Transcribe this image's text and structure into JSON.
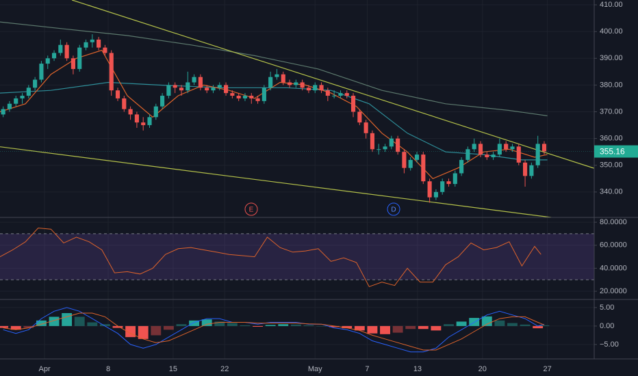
{
  "chart_data": [
    {
      "type": "candlestick",
      "up_color": "#26a69a",
      "down_color": "#ef5350",
      "xlim": [
        0,
        94
      ],
      "xticks": [
        {
          "value": 7.0,
          "label": "Apr"
        },
        {
          "value": 17.0,
          "label": "8"
        },
        {
          "value": 27.2,
          "label": "15"
        },
        {
          "value": 35.3,
          "label": "22"
        },
        {
          "value": 49.5,
          "label": "May"
        },
        {
          "value": 57.7,
          "label": "7"
        },
        {
          "value": 65.6,
          "label": "13"
        },
        {
          "value": 75.8,
          "label": "20"
        },
        {
          "value": 86.0,
          "label": "27"
        }
      ],
      "ylim": [
        330.5,
        411.8
      ],
      "yticks": [
        {
          "value": 340,
          "label": "340.00"
        },
        {
          "value": 350,
          "label": "350.00"
        },
        {
          "value": 360,
          "label": "360.00"
        },
        {
          "value": 370,
          "label": "370.00"
        },
        {
          "value": 380,
          "label": "380.00"
        },
        {
          "value": 390,
          "label": "390.00"
        },
        {
          "value": 400,
          "label": "400.00"
        },
        {
          "value": 410,
          "label": "410.00"
        }
      ],
      "grid": true,
      "ohlc": [
        [
          369,
          372,
          368,
          371
        ],
        [
          371,
          374,
          370,
          373
        ],
        [
          373,
          376,
          372,
          375
        ],
        [
          375,
          377,
          373,
          376
        ],
        [
          376,
          380,
          375,
          379
        ],
        [
          379,
          383,
          378,
          382
        ],
        [
          382,
          389,
          381,
          388
        ],
        [
          388,
          391,
          386,
          390
        ],
        [
          390,
          393,
          389,
          392
        ],
        [
          392,
          397,
          391,
          395
        ],
        [
          395,
          396,
          389,
          390
        ],
        [
          390,
          391,
          384,
          386
        ],
        [
          386,
          395,
          385,
          394
        ],
        [
          394,
          397,
          393,
          396
        ],
        [
          396,
          399,
          394,
          397
        ],
        [
          397,
          398,
          393,
          394
        ],
        [
          394,
          395,
          391,
          392
        ],
        [
          392,
          393,
          376,
          378
        ],
        [
          378,
          379,
          374,
          375
        ],
        [
          375,
          376,
          370,
          371
        ],
        [
          371,
          372,
          367,
          369
        ],
        [
          369,
          370,
          364,
          366
        ],
        [
          366,
          368,
          363,
          365
        ],
        [
          365,
          369,
          364,
          368
        ],
        [
          368,
          373,
          367,
          372
        ],
        [
          372,
          377,
          371,
          376
        ],
        [
          376,
          381,
          375,
          380
        ],
        [
          380,
          381,
          377,
          379
        ],
        [
          379,
          380,
          376,
          378
        ],
        [
          378,
          385,
          377,
          381
        ],
        [
          381,
          384,
          380,
          383
        ],
        [
          383,
          384,
          378,
          379
        ],
        [
          379,
          380,
          377,
          378
        ],
        [
          378,
          380,
          377,
          379
        ],
        [
          379,
          381,
          378,
          380
        ],
        [
          380,
          381,
          376,
          377
        ],
        [
          377,
          378,
          375,
          376
        ],
        [
          376,
          377,
          374,
          375
        ],
        [
          375,
          377,
          374,
          376
        ],
        [
          376,
          377,
          373,
          375
        ],
        [
          375,
          376,
          373,
          374
        ],
        [
          374,
          380,
          373,
          379
        ],
        [
          379,
          385,
          378,
          383
        ],
        [
          383,
          386,
          382,
          384
        ],
        [
          384,
          385,
          380,
          381
        ],
        [
          381,
          382,
          379,
          380
        ],
        [
          380,
          382,
          379,
          381
        ],
        [
          381,
          382,
          378,
          379
        ],
        [
          379,
          380,
          377,
          378
        ],
        [
          378,
          381,
          377,
          380
        ],
        [
          380,
          381,
          377,
          378
        ],
        [
          378,
          379,
          374,
          376
        ],
        [
          376,
          378,
          375,
          376
        ],
        [
          376,
          378,
          375,
          377
        ],
        [
          377,
          378,
          375,
          376
        ],
        [
          376,
          377,
          368,
          370
        ],
        [
          370,
          371,
          365,
          366
        ],
        [
          366,
          367,
          360,
          362
        ],
        [
          362,
          363,
          355,
          356
        ],
        [
          356,
          358,
          354,
          356
        ],
        [
          356,
          358,
          355,
          357
        ],
        [
          357,
          361,
          356,
          360
        ],
        [
          360,
          361,
          354,
          355
        ],
        [
          355,
          356,
          347,
          349
        ],
        [
          349,
          353,
          348,
          352
        ],
        [
          352,
          355,
          351,
          354
        ],
        [
          354,
          355,
          343,
          344
        ],
        [
          344,
          345,
          336,
          338
        ],
        [
          338,
          341,
          337,
          340
        ],
        [
          340,
          345,
          339,
          344
        ],
        [
          344,
          345,
          342,
          343
        ],
        [
          343,
          348,
          342,
          347
        ],
        [
          347,
          353,
          346,
          352
        ],
        [
          352,
          357,
          351,
          356
        ],
        [
          356,
          360,
          355,
          358
        ],
        [
          358,
          359,
          353,
          354
        ],
        [
          354,
          355,
          352,
          353
        ],
        [
          353,
          355,
          352,
          354
        ],
        [
          354,
          360,
          353,
          358
        ],
        [
          358,
          359,
          355,
          356
        ],
        [
          356,
          358,
          355,
          357
        ],
        [
          357,
          358,
          350,
          351
        ],
        [
          351,
          352,
          342,
          346
        ],
        [
          346,
          351,
          345,
          350
        ],
        [
          350,
          361,
          349,
          358
        ],
        [
          358,
          359,
          354,
          355.16
        ]
      ],
      "lines": [
        {
          "color": "#5d7a6e",
          "x": [
            0,
            10,
            20,
            30,
            40,
            50,
            60,
            70,
            80,
            86
          ],
          "values": [
            403.6,
            401,
            398.5,
            395,
            391,
            386,
            378,
            373,
            370.5,
            368.5
          ]
        },
        {
          "color": "#2e8f9a",
          "x": [
            0,
            8,
            17,
            25,
            35,
            45,
            52,
            58,
            64,
            70,
            76,
            82,
            86
          ],
          "values": [
            377,
            378,
            381,
            380,
            379,
            379,
            378,
            373,
            362,
            355,
            354,
            352,
            352
          ]
        },
        {
          "color": "#e0642b",
          "x": [
            0,
            4,
            8,
            12,
            16,
            20,
            24,
            28,
            32,
            36,
            40,
            44,
            48,
            52,
            56,
            60,
            64,
            68,
            72,
            76,
            80,
            84,
            86
          ],
          "values": [
            370,
            373,
            384,
            390,
            393,
            376,
            368,
            376,
            380,
            378,
            375,
            381,
            380,
            377,
            372,
            362,
            355,
            345,
            349,
            355,
            356,
            353,
            354
          ]
        },
        {
          "color": "#b5c24a",
          "x": [
            11.3,
            93.3
          ],
          "values": [
            411.8,
            348.9
          ]
        },
        {
          "color": "#b5c24a",
          "x": [
            0,
            86.6
          ],
          "values": [
            356.9,
            330.5
          ]
        }
      ],
      "events": [
        {
          "label": "E",
          "color": "#ef5350"
        },
        {
          "label": "D",
          "color": "#2962ff"
        }
      ]
    },
    {
      "type": "line",
      "color": "#e0642b",
      "band_color": "#7e57c2",
      "ylim": [
        12.9,
        84.2
      ],
      "yticks": [
        {
          "value": 20,
          "label": "20.0000"
        },
        {
          "value": 40,
          "label": "40.0000"
        },
        {
          "value": 60,
          "label": "60.0000"
        },
        {
          "value": 80,
          "label": "80.0000"
        }
      ],
      "bands": [
        30,
        70
      ],
      "x": [
        0,
        2,
        4,
        6,
        8,
        10,
        12,
        14,
        16,
        18,
        20,
        22,
        24,
        26,
        28,
        30,
        32,
        34,
        36,
        38,
        40,
        42,
        44,
        46,
        48,
        50,
        52,
        54,
        56,
        58,
        60,
        62,
        64,
        66,
        68,
        70,
        72,
        74,
        76,
        78,
        80,
        82,
        84,
        85
      ],
      "values": [
        50,
        56,
        63,
        75,
        74,
        62,
        67,
        63,
        56,
        36,
        37,
        35,
        40,
        52,
        57,
        58,
        56,
        54,
        52,
        51,
        50,
        67,
        58,
        54,
        55,
        57,
        46,
        49,
        45,
        24,
        28,
        25,
        40,
        28,
        28,
        43,
        50,
        62,
        56,
        58,
        63,
        42,
        59,
        52
      ]
    },
    {
      "type": "macd",
      "up_color": "#26a69a",
      "down_color": "#ef5350",
      "macd_color": "#2962ff",
      "signal_color": "#e0642b",
      "ylim": [
        -8.9,
        7.2
      ],
      "yticks": [
        {
          "value": -5,
          "label": "−5.00"
        },
        {
          "value": 0,
          "label": "0.00"
        },
        {
          "value": 5,
          "label": "5.00"
        }
      ],
      "x": [
        0,
        2,
        4,
        6,
        8,
        10,
        12,
        14,
        16,
        18,
        20,
        22,
        24,
        26,
        28,
        30,
        32,
        34,
        36,
        38,
        40,
        42,
        44,
        46,
        48,
        50,
        52,
        54,
        56,
        58,
        60,
        62,
        64,
        66,
        68,
        70,
        72,
        74,
        76,
        78,
        80,
        82,
        84,
        85
      ],
      "histogram": [
        -0.5,
        -1,
        -0.5,
        1.5,
        2.5,
        3.5,
        2.5,
        1.0,
        0.5,
        -0.5,
        -3,
        -3.5,
        -2.5,
        -1.0,
        0.5,
        1.5,
        1.8,
        1.2,
        0.8,
        0.2,
        -0.2,
        0.3,
        0.5,
        0.4,
        0.2,
        0,
        -0.3,
        -0.6,
        -1.2,
        -2,
        -2.2,
        -1.8,
        -0.8,
        -0.8,
        -1.2,
        0.5,
        1.2,
        2.2,
        2.6,
        1.5,
        0.8,
        0.4,
        -0.6,
        0.2
      ],
      "macd": [
        -1,
        -2,
        -1,
        2,
        4,
        5,
        4,
        2,
        0,
        -2,
        -5,
        -6,
        -5,
        -3,
        -1,
        1,
        2,
        2,
        1,
        1,
        0.5,
        1,
        1,
        1,
        0.5,
        0.5,
        -0.5,
        -1,
        -2,
        -4,
        -5,
        -6,
        -7,
        -7,
        -6,
        -3,
        -1,
        1,
        3,
        4,
        3,
        2,
        0,
        0.5
      ],
      "signal": [
        -0.5,
        -1,
        -0.5,
        0.5,
        1.5,
        2.5,
        3.5,
        3.5,
        2.5,
        0,
        -2,
        -3.5,
        -4.5,
        -4,
        -2.5,
        -1,
        0.5,
        1,
        1,
        1,
        0.8,
        0.8,
        0.8,
        0.8,
        0.6,
        0.5,
        0,
        -0.5,
        -1.2,
        -2.5,
        -3.5,
        -4.5,
        -5.5,
        -6.5,
        -6.5,
        -5,
        -3.5,
        -1.5,
        0.5,
        2,
        2.5,
        2.5,
        1,
        0.3
      ]
    }
  ]
}
